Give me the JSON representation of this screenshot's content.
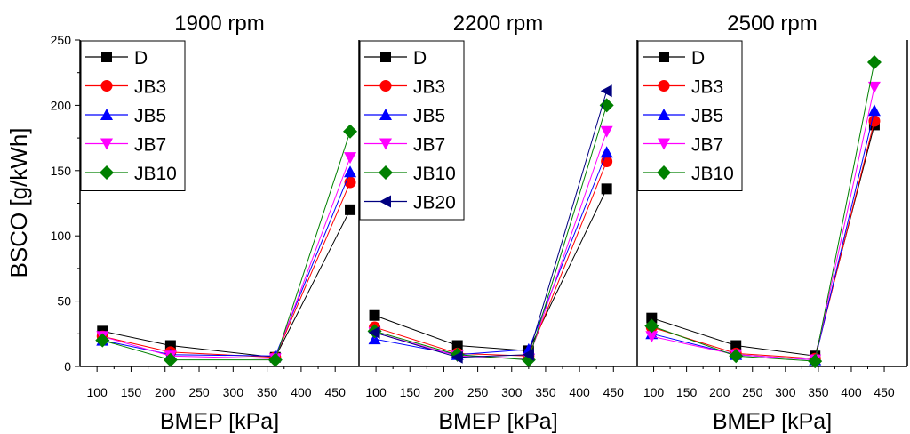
{
  "figure": {
    "ylabel": "BSCO [g/kWh]"
  },
  "markers": {
    "D": {
      "shape": "square",
      "color": "#000000"
    },
    "JB3": {
      "shape": "circle",
      "color": "#ff0000"
    },
    "JB5": {
      "shape": "triangle-up",
      "color": "#0000ff"
    },
    "JB7": {
      "shape": "triangle-down",
      "color": "#ff00ff"
    },
    "JB10": {
      "shape": "diamond",
      "color": "#008000"
    },
    "JB20": {
      "shape": "triangle-left",
      "color": "#000080"
    }
  },
  "chart_data": [
    {
      "type": "line",
      "title": "1900 rpm",
      "xlabel": "BMEP [kPa]",
      "ylabel": "BSCO [g/kWh]",
      "xlim": [
        75,
        485
      ],
      "ylim": [
        0,
        250
      ],
      "xticks": [
        100,
        150,
        200,
        250,
        300,
        350,
        400,
        450
      ],
      "yticks": [
        0,
        50,
        100,
        150,
        200,
        250
      ],
      "legend": "top-left",
      "series": [
        {
          "name": "D",
          "x": [
            108,
            208,
            362,
            472
          ],
          "y": [
            27,
            16,
            7,
            120
          ]
        },
        {
          "name": "JB3",
          "x": [
            108,
            208,
            362,
            472
          ],
          "y": [
            23,
            11,
            7,
            141
          ]
        },
        {
          "name": "JB5",
          "x": [
            108,
            208,
            362,
            472
          ],
          "y": [
            20,
            9,
            8,
            149
          ]
        },
        {
          "name": "JB7",
          "x": [
            108,
            208,
            362,
            472
          ],
          "y": [
            23,
            8,
            6,
            160
          ]
        },
        {
          "name": "JB10",
          "x": [
            108,
            208,
            362,
            472
          ],
          "y": [
            20,
            5,
            5,
            180
          ]
        }
      ]
    },
    {
      "type": "line",
      "title": "2200 rpm",
      "xlabel": "BMEP [kPa]",
      "ylabel": "",
      "xlim": [
        75,
        485
      ],
      "ylim": [
        0,
        250
      ],
      "xticks": [
        100,
        150,
        200,
        250,
        300,
        350,
        400,
        450
      ],
      "yticks": [
        0,
        50,
        100,
        150,
        200,
        250
      ],
      "legend": "top-left",
      "series": [
        {
          "name": "D",
          "x": [
            98,
            220,
            325,
            440
          ],
          "y": [
            39,
            16,
            12,
            136
          ]
        },
        {
          "name": "JB3",
          "x": [
            98,
            220,
            325,
            440
          ],
          "y": [
            30,
            10,
            8,
            157
          ]
        },
        {
          "name": "JB5",
          "x": [
            98,
            220,
            325,
            440
          ],
          "y": [
            21,
            9,
            13,
            164
          ]
        },
        {
          "name": "JB7",
          "x": [
            98,
            220,
            325,
            440
          ],
          "y": [
            26,
            8,
            6,
            180
          ]
        },
        {
          "name": "JB10",
          "x": [
            98,
            220,
            325,
            440
          ],
          "y": [
            27,
            9,
            5,
            200
          ]
        },
        {
          "name": "JB20",
          "x": [
            98,
            220,
            325,
            440
          ],
          "y": [
            26,
            7,
            9,
            211
          ]
        }
      ]
    },
    {
      "type": "line",
      "title": "2500 rpm",
      "xlabel": "BMEP [kPa]",
      "ylabel": "",
      "xlim": [
        75,
        485
      ],
      "ylim": [
        0,
        250
      ],
      "xticks": [
        100,
        150,
        200,
        250,
        300,
        350,
        400,
        450
      ],
      "yticks": [
        0,
        50,
        100,
        150,
        200,
        250
      ],
      "legend": "top-left",
      "series": [
        {
          "name": "D",
          "x": [
            97,
            225,
            345,
            435
          ],
          "y": [
            37,
            16,
            8,
            185
          ]
        },
        {
          "name": "JB3",
          "x": [
            97,
            225,
            345,
            435
          ],
          "y": [
            30,
            10,
            6,
            188
          ]
        },
        {
          "name": "JB5",
          "x": [
            97,
            225,
            345,
            435
          ],
          "y": [
            25,
            9,
            5,
            196
          ]
        },
        {
          "name": "JB7",
          "x": [
            97,
            225,
            345,
            435
          ],
          "y": [
            23,
            9,
            5,
            214
          ]
        },
        {
          "name": "JB10",
          "x": [
            97,
            225,
            345,
            435
          ],
          "y": [
            31,
            8,
            4,
            233
          ]
        }
      ]
    }
  ]
}
